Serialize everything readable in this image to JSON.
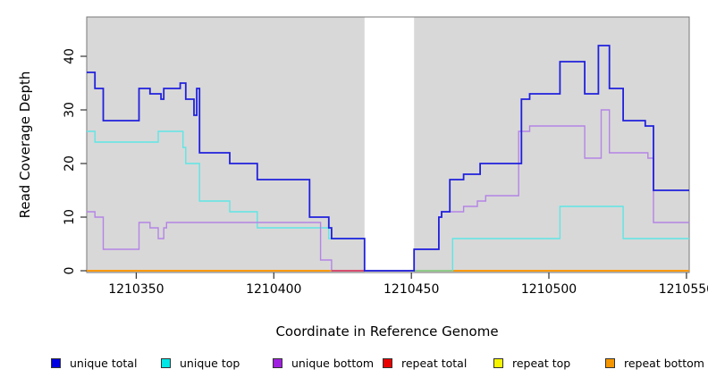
{
  "chart_data": {
    "type": "line",
    "subtype": "step",
    "title": "",
    "xlabel": "Coordinate in Reference Genome",
    "ylabel": "Read Coverage Depth",
    "xlim": [
      1210332,
      1210551
    ],
    "ylim": [
      0,
      47
    ],
    "x_ticks": [
      "1210350",
      "1210400",
      "1210450",
      "1210500",
      "1210550"
    ],
    "x_tick_values": [
      1210350,
      1210400,
      1210450,
      1210500,
      1210550
    ],
    "y_ticks": [
      "0",
      "10",
      "20",
      "30",
      "40"
    ],
    "y_tick_values": [
      0,
      10,
      20,
      30,
      40
    ],
    "grid": false,
    "plot_bg_color": "#d8d8d8",
    "box_color": "#777777",
    "gap_region": {
      "start": 1210433,
      "end": 1210451,
      "color": "#ffffff"
    },
    "legend_position": "bottom",
    "series": [
      {
        "name": "unique total",
        "line_color": "#2020dd",
        "swatch_color": "#0000e0",
        "line_width": 1.8,
        "steps": [
          [
            1210332,
            37
          ],
          [
            1210335,
            34
          ],
          [
            1210338,
            28
          ],
          [
            1210351,
            34
          ],
          [
            1210355,
            33
          ],
          [
            1210359,
            32
          ],
          [
            1210360,
            34
          ],
          [
            1210366,
            35
          ],
          [
            1210368,
            32
          ],
          [
            1210371,
            29
          ],
          [
            1210372,
            34
          ],
          [
            1210373,
            22
          ],
          [
            1210384,
            20
          ],
          [
            1210394,
            17
          ],
          [
            1210413,
            10
          ],
          [
            1210420,
            8
          ],
          [
            1210421,
            6
          ],
          [
            1210433,
            0
          ],
          [
            1210451,
            4
          ],
          [
            1210460,
            10
          ],
          [
            1210461,
            11
          ],
          [
            1210464,
            17
          ],
          [
            1210469,
            18
          ],
          [
            1210475,
            20
          ],
          [
            1210490,
            32
          ],
          [
            1210493,
            33
          ],
          [
            1210504,
            39
          ],
          [
            1210513,
            33
          ],
          [
            1210518,
            42
          ],
          [
            1210522,
            34
          ],
          [
            1210527,
            28
          ],
          [
            1210535,
            27
          ],
          [
            1210538,
            15
          ]
        ]
      },
      {
        "name": "unique top",
        "line_color": "#5fe5e5",
        "swatch_color": "#00e5e5",
        "line_width": 1.4,
        "steps": [
          [
            1210332,
            26
          ],
          [
            1210335,
            24
          ],
          [
            1210358,
            26
          ],
          [
            1210367,
            23
          ],
          [
            1210368,
            20
          ],
          [
            1210373,
            13
          ],
          [
            1210384,
            11
          ],
          [
            1210394,
            8
          ],
          [
            1210420,
            6
          ],
          [
            1210433,
            0
          ],
          [
            1210465,
            6
          ],
          [
            1210504,
            12
          ],
          [
            1210527,
            6
          ]
        ]
      },
      {
        "name": "unique bottom",
        "line_color": "#b484e6",
        "swatch_color": "#a020e0",
        "line_width": 1.4,
        "steps": [
          [
            1210332,
            11
          ],
          [
            1210335,
            10
          ],
          [
            1210338,
            4
          ],
          [
            1210351,
            9
          ],
          [
            1210355,
            8
          ],
          [
            1210358,
            6
          ],
          [
            1210360,
            8
          ],
          [
            1210361,
            9
          ],
          [
            1210417,
            2
          ],
          [
            1210421,
            0
          ],
          [
            1210451,
            4
          ],
          [
            1210460,
            10
          ],
          [
            1210461,
            11
          ],
          [
            1210469,
            12
          ],
          [
            1210474,
            13
          ],
          [
            1210477,
            14
          ],
          [
            1210489,
            26
          ],
          [
            1210493,
            27
          ],
          [
            1210513,
            21
          ],
          [
            1210519,
            30
          ],
          [
            1210522,
            22
          ],
          [
            1210536,
            21
          ],
          [
            1210538,
            9
          ]
        ]
      },
      {
        "name": "repeat total",
        "line_color": "#e00000",
        "swatch_color": "#e80000",
        "line_width": 1.4,
        "steps": [
          [
            1210332,
            0
          ]
        ]
      },
      {
        "name": "repeat top",
        "line_color": "#f5f500",
        "swatch_color": "#f5f500",
        "line_width": 1.4,
        "steps": [
          [
            1210332,
            0
          ]
        ]
      },
      {
        "name": "repeat bottom",
        "line_color": "#ff9600",
        "swatch_color": "#f59600",
        "line_width": 1.8,
        "steps": [
          [
            1210332,
            0
          ]
        ]
      }
    ],
    "baseline_blend_segments": [
      {
        "start": 1210421,
        "end": 1210433,
        "color": "#d6446e"
      },
      {
        "start": 1210451,
        "end": 1210465,
        "color": "#8ccc8c"
      }
    ]
  }
}
